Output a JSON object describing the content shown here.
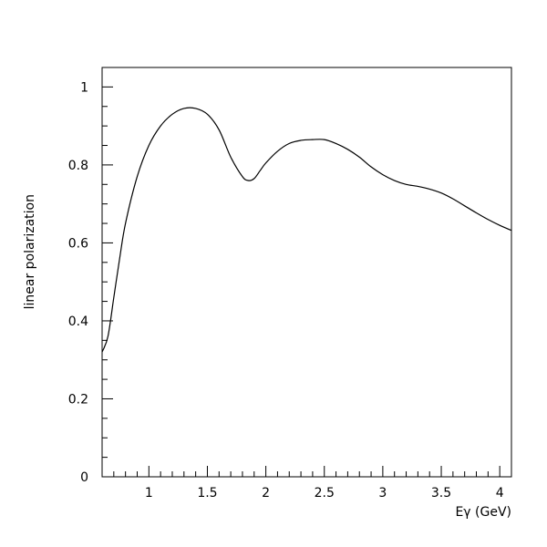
{
  "chart_data": {
    "type": "line",
    "title": "",
    "xlabel": "Eγ (GeV)",
    "ylabel": "linear polarization",
    "xlim": [
      0.6,
      4.1
    ],
    "ylim": [
      0,
      1.05
    ],
    "grid": false,
    "xticks": [
      1,
      1.5,
      2,
      2.5,
      3,
      3.5,
      4
    ],
    "xtick_labels": [
      "1",
      "1.5",
      "2",
      "2.5",
      "3",
      "3.5",
      "4"
    ],
    "yticks": [
      0,
      0.2,
      0.4,
      0.6,
      0.8,
      1
    ],
    "ytick_labels": [
      "0",
      "0.2",
      "0.4",
      "0.6",
      "0.8",
      "1"
    ],
    "series": [
      {
        "color": "#000000",
        "x": [
          0.6,
          0.65,
          0.7,
          0.75,
          0.8,
          0.9,
          1.0,
          1.1,
          1.2,
          1.3,
          1.4,
          1.5,
          1.6,
          1.7,
          1.8,
          1.85,
          1.9,
          1.95,
          2.0,
          2.1,
          2.2,
          2.3,
          2.4,
          2.5,
          2.6,
          2.7,
          2.8,
          2.9,
          3.0,
          3.1,
          3.2,
          3.3,
          3.4,
          3.5,
          3.6,
          3.7,
          3.8,
          3.9,
          4.0,
          4.1
        ],
        "y": [
          0.32,
          0.36,
          0.46,
          0.56,
          0.65,
          0.77,
          0.85,
          0.9,
          0.93,
          0.945,
          0.945,
          0.93,
          0.89,
          0.82,
          0.77,
          0.76,
          0.765,
          0.785,
          0.805,
          0.835,
          0.855,
          0.863,
          0.865,
          0.865,
          0.855,
          0.84,
          0.82,
          0.795,
          0.775,
          0.76,
          0.75,
          0.745,
          0.738,
          0.728,
          0.713,
          0.695,
          0.677,
          0.66,
          0.645,
          0.632
        ]
      }
    ]
  }
}
